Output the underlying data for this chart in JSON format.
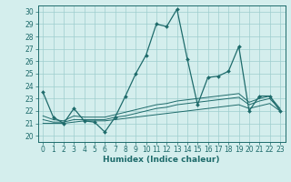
{
  "bg_color": "#d4eeed",
  "line_color": "#1e6b6b",
  "grid_color": "#9ecece",
  "xlim": [
    -0.5,
    23.5
  ],
  "ylim": [
    19.5,
    30.5
  ],
  "yticks": [
    20,
    21,
    22,
    23,
    24,
    25,
    26,
    27,
    28,
    29,
    30
  ],
  "xticks": [
    0,
    1,
    2,
    3,
    4,
    5,
    6,
    7,
    8,
    9,
    10,
    11,
    12,
    13,
    14,
    15,
    16,
    17,
    18,
    19,
    20,
    21,
    22,
    23
  ],
  "xlabel": "Humidex (Indice chaleur)",
  "main_x": [
    0,
    1,
    2,
    3,
    4,
    5,
    6,
    7,
    8,
    9,
    10,
    11,
    12,
    13,
    14,
    15,
    16,
    17,
    18,
    19,
    20,
    21,
    22,
    23
  ],
  "main_y": [
    23.5,
    21.5,
    21.0,
    22.2,
    21.2,
    21.1,
    20.3,
    21.5,
    23.2,
    25.0,
    26.5,
    29.0,
    28.8,
    30.2,
    26.2,
    22.5,
    24.7,
    24.8,
    25.2,
    27.2,
    22.0,
    23.2,
    23.2,
    22.0
  ],
  "flat1_x": [
    0,
    1,
    2,
    3,
    4,
    5,
    6,
    7,
    8,
    9,
    10,
    11,
    12,
    13,
    14,
    15,
    16,
    17,
    18,
    19,
    20,
    21,
    22,
    23
  ],
  "flat1_y": [
    21.0,
    21.0,
    21.0,
    21.1,
    21.2,
    21.2,
    21.2,
    21.3,
    21.4,
    21.5,
    21.6,
    21.7,
    21.8,
    21.9,
    22.0,
    22.1,
    22.2,
    22.3,
    22.4,
    22.5,
    22.2,
    22.4,
    22.6,
    22.0
  ],
  "flat2_x": [
    0,
    1,
    2,
    3,
    4,
    5,
    6,
    7,
    8,
    9,
    10,
    11,
    12,
    13,
    14,
    15,
    16,
    17,
    18,
    19,
    20,
    21,
    22,
    23
  ],
  "flat2_y": [
    21.3,
    21.1,
    21.1,
    21.3,
    21.3,
    21.3,
    21.3,
    21.5,
    21.6,
    21.8,
    22.0,
    22.2,
    22.3,
    22.5,
    22.6,
    22.7,
    22.8,
    22.9,
    23.0,
    23.1,
    22.5,
    22.8,
    23.0,
    22.1
  ],
  "flat3_x": [
    0,
    1,
    2,
    3,
    4,
    5,
    6,
    7,
    8,
    9,
    10,
    11,
    12,
    13,
    14,
    15,
    16,
    17,
    18,
    19,
    20,
    21,
    22,
    23
  ],
  "flat3_y": [
    21.6,
    21.3,
    21.2,
    21.6,
    21.5,
    21.5,
    21.5,
    21.7,
    21.9,
    22.1,
    22.3,
    22.5,
    22.6,
    22.8,
    22.9,
    23.0,
    23.1,
    23.2,
    23.3,
    23.4,
    22.7,
    23.0,
    23.2,
    22.2
  ],
  "tick_fontsize": 5.5,
  "xlabel_fontsize": 6.5
}
